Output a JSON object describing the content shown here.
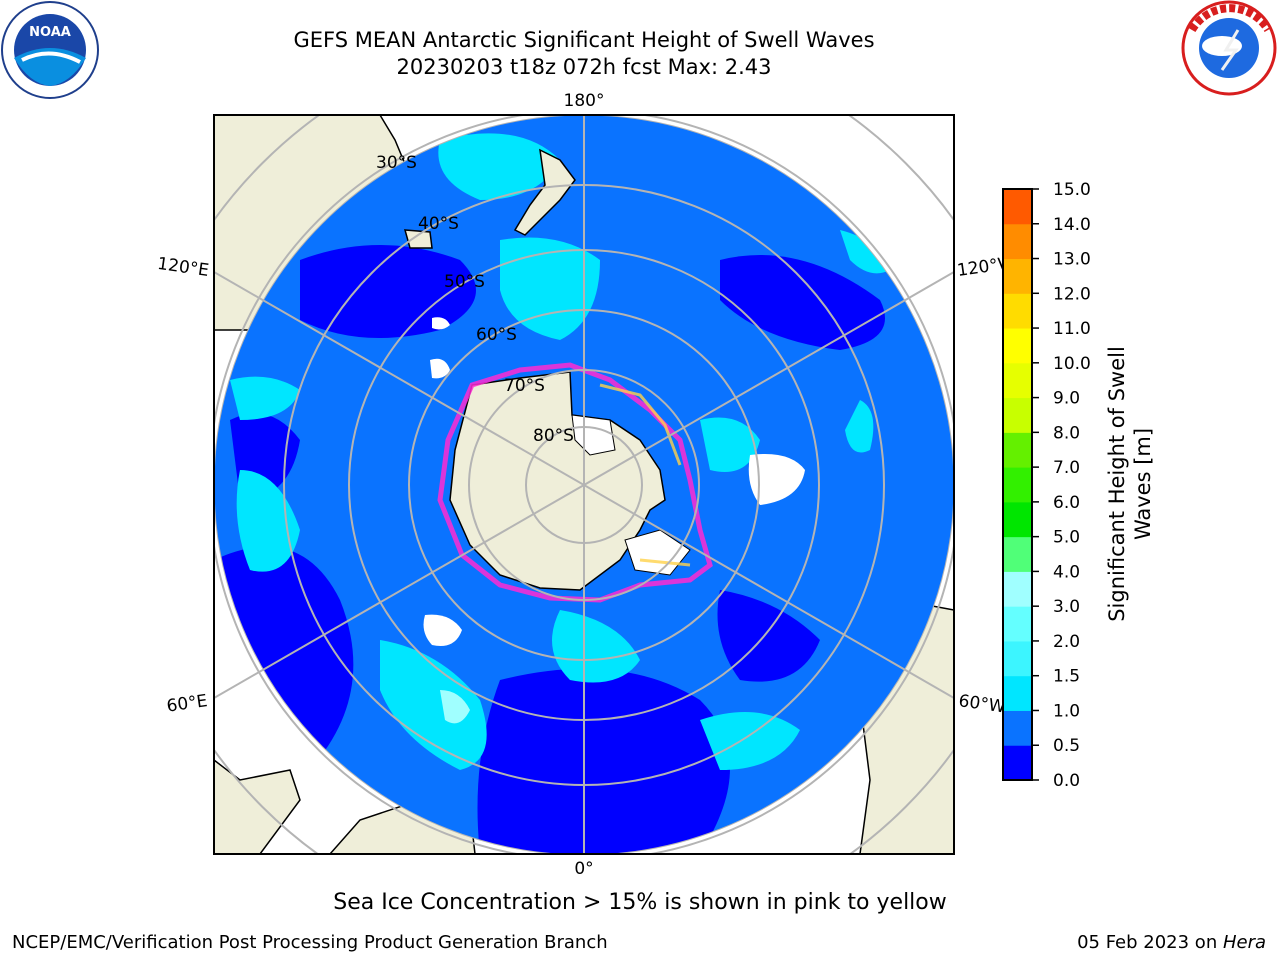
{
  "header": {
    "title_line1": "GEFS MEAN Antarctic Significant Height of Swell Waves",
    "title_line2": "20230203 t18z 072h fcst   Max: 2.43"
  },
  "logos": {
    "left": "NOAA",
    "right": "NATIONAL WEATHER SERVICE"
  },
  "map": {
    "projection": "south-polar-stereographic",
    "meridian_labels": {
      "top": "180°",
      "bottom": "0°",
      "left_upper": "120°E",
      "left_lower": "60°E",
      "right_upper": "120°W",
      "right_lower": "60°W"
    },
    "latitude_labels": [
      "30°S",
      "40°S",
      "50°S",
      "60°S",
      "70°S",
      "80°S"
    ],
    "colors": {
      "land": "#efeed9",
      "ice_sheet": "#ffffff",
      "ocean_low": "#0000ff",
      "ocean_mid": "#0a73ff",
      "ocean_high": "#00e6ff",
      "ocean_peak": "#5af5ff",
      "sea_ice_edge": "#ff2ad4",
      "grid": "#b4b4b4"
    }
  },
  "colorbar": {
    "title_line1": "Significant Height of Swell",
    "title_line2": "Waves [m]",
    "ticks": [
      "0.0",
      "0.5",
      "1.0",
      "1.5",
      "2.0",
      "3.0",
      "4.0",
      "5.0",
      "6.0",
      "7.0",
      "8.0",
      "9.0",
      "10.0",
      "11.0",
      "12.0",
      "13.0",
      "14.0",
      "15.0"
    ],
    "colors": [
      "#0000ff",
      "#0a73ff",
      "#00e6ff",
      "#3cf5ff",
      "#64ffff",
      "#a0ffff",
      "#50ff78",
      "#00e600",
      "#32f000",
      "#64f000",
      "#c8ff00",
      "#e6ff00",
      "#ffff00",
      "#ffdc00",
      "#ffb400",
      "#ff8c00",
      "#ff5a00",
      "#ff2800",
      "#ff0000"
    ]
  },
  "note": "Sea Ice Concentration > 15% is shown in pink to yellow",
  "footer": {
    "left": "NCEP/EMC/Verification Post Processing Product Generation Branch",
    "right_prefix": "05 Feb 2023 on ",
    "right_host": "Hera"
  }
}
